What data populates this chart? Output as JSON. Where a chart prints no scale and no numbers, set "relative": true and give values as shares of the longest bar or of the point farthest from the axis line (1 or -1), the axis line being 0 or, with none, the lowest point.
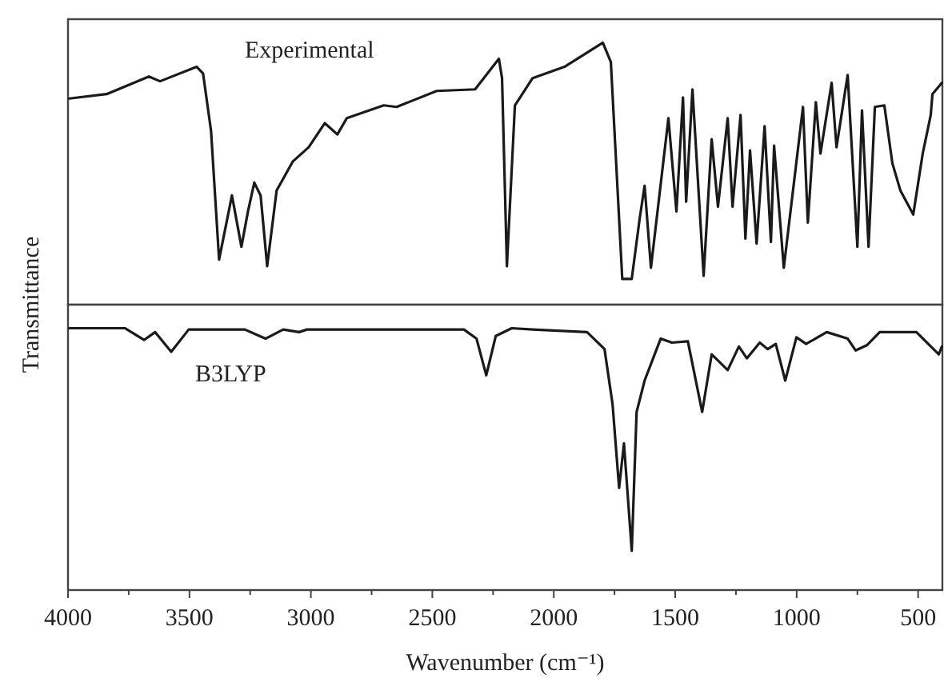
{
  "chart_data": [
    {
      "type": "line",
      "relative": true,
      "ylabel": "Transmittance",
      "annotations": [
        "Experimental"
      ],
      "xlim": [
        4000,
        400
      ],
      "tick_labels": false,
      "color": "#1a1a1a",
      "x": [
        3995,
        3841,
        3667,
        3621,
        3470,
        3444,
        3411,
        3378,
        3325,
        3286,
        3259,
        3233,
        3207,
        3180,
        3141,
        3075,
        3009,
        2943,
        2891,
        2852,
        2700,
        2647,
        2482,
        2324,
        2226,
        2213,
        2193,
        2160,
        2087,
        1956,
        1798,
        1765,
        1718,
        1679,
        1646,
        1626,
        1600,
        1528,
        1495,
        1468,
        1455,
        1429,
        1383,
        1350,
        1324,
        1284,
        1264,
        1231,
        1211,
        1192,
        1165,
        1132,
        1106,
        1093,
        1053,
        974,
        954,
        921,
        902,
        856,
        836,
        790,
        750,
        731,
        704,
        678,
        639,
        606,
        573,
        520,
        481,
        448,
        441,
        402
      ],
      "values": [
        0.787,
        0.804,
        0.871,
        0.853,
        0.908,
        0.883,
        0.663,
        0.172,
        0.417,
        0.221,
        0.356,
        0.466,
        0.417,
        0.147,
        0.436,
        0.546,
        0.601,
        0.693,
        0.65,
        0.712,
        0.761,
        0.755,
        0.816,
        0.822,
        0.939,
        0.865,
        0.147,
        0.761,
        0.865,
        0.908,
        1,
        0.926,
        0.098,
        0.098,
        0.331,
        0.454,
        0.141,
        0.712,
        0.356,
        0.791,
        0.393,
        0.822,
        0.11,
        0.632,
        0.374,
        0.712,
        0.374,
        0.724,
        0.252,
        0.589,
        0.233,
        0.681,
        0.239,
        0.607,
        0.141,
        0.755,
        0.313,
        0.773,
        0.577,
        0.847,
        0.601,
        0.877,
        0.221,
        0.742,
        0.221,
        0.755,
        0.761,
        0.54,
        0.436,
        0.344,
        0.577,
        0.724,
        0.804,
        0.847
      ]
    },
    {
      "type": "line",
      "relative": true,
      "xlabel": "Wavenumber (cm⁻¹)",
      "annotations": [
        "B3LYP"
      ],
      "xlim": [
        4000,
        400
      ],
      "tick_labels": "x",
      "color": "#1a1a1a",
      "xticks": [
        4000,
        {
          "value": 3750,
          "label": null
        },
        3500,
        {
          "value": 3250,
          "label": null
        },
        3000,
        {
          "value": 2750,
          "label": null
        },
        2500,
        {
          "value": 2250,
          "label": null
        },
        2000,
        {
          "value": 1750,
          "label": null
        },
        1500,
        {
          "value": 1250,
          "label": null
        },
        1000,
        {
          "value": 750,
          "label": null
        },
        500
      ],
      "x": [
        3995,
        3766,
        3687,
        3641,
        3575,
        3503,
        3272,
        3187,
        3114,
        3049,
        3016,
        2370,
        2318,
        2278,
        2239,
        2173,
        2087,
        1863,
        1791,
        1758,
        1731,
        1711,
        1679,
        1659,
        1626,
        1560,
        1514,
        1448,
        1389,
        1350,
        1284,
        1238,
        1205,
        1152,
        1119,
        1086,
        1047,
        1001,
        961,
        876,
        790,
        757,
        711,
        658,
        507,
        415,
        402
      ],
      "values": [
        1,
        1,
        0.955,
        0.985,
        0.91,
        0.995,
        0.995,
        0.96,
        0.995,
        0.985,
        0.995,
        0.995,
        0.96,
        0.82,
        0.97,
        1,
        0.995,
        0.985,
        0.92,
        0.71,
        0.39,
        0.56,
        0.15,
        0.68,
        0.8,
        0.96,
        0.945,
        0.95,
        0.68,
        0.9,
        0.84,
        0.93,
        0.885,
        0.945,
        0.92,
        0.94,
        0.8,
        0.965,
        0.94,
        0.985,
        0.96,
        0.915,
        0.935,
        0.985,
        0.985,
        0.9,
        0.93
      ]
    }
  ]
}
